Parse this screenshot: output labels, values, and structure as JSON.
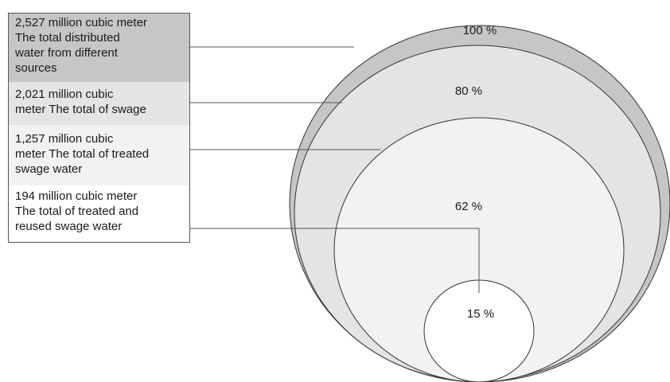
{
  "legend": [
    {
      "text": "2,527 million cubic meter\nThe total distributed\nwater from different\nsources",
      "fill": "#c6c6c6"
    },
    {
      "text": "2,021  million cubic\nmeter The total of swage",
      "fill": "#e4e4e4"
    },
    {
      "text": "1,257  million cubic\nmeter The total of treated\nswage water",
      "fill": "#f2f2f2"
    },
    {
      "text": "194  million cubic meter\nThe total of treated and\nreused swage water",
      "fill": "#ffffff"
    }
  ],
  "percentages": [
    "100 %",
    "80 %",
    "62 %",
    "15 %"
  ],
  "colors": {
    "circle_100": "#c6c6c6",
    "circle_80": "#e4e4e4",
    "circle_62": "#f2f2f2",
    "circle_15": "#ffffff",
    "stroke": "#333333",
    "connector": "#555555"
  }
}
